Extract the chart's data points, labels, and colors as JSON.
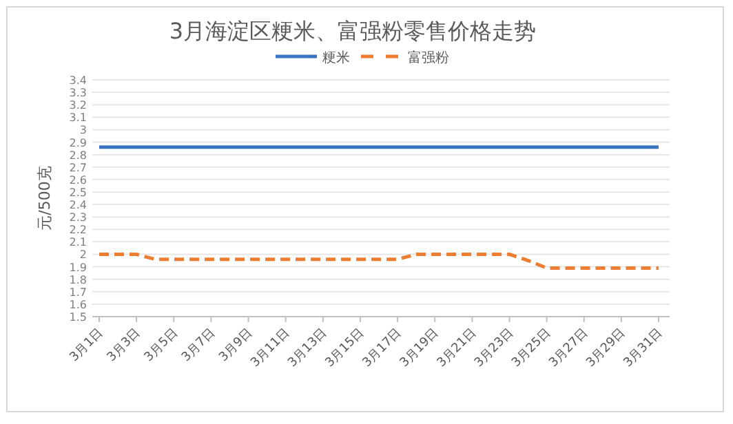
{
  "chart_data": {
    "type": "line",
    "title": "3月海淀区粳米、富强粉零售价格走势",
    "ylabel": "元/500克",
    "categories": [
      "3月1日",
      null,
      "3月3日",
      null,
      "3月5日",
      null,
      "3月7日",
      null,
      "3月9日",
      null,
      "3月11日",
      null,
      "3月13日",
      null,
      "3月15日",
      null,
      "3月17日",
      null,
      "3月19日",
      null,
      "3月21日",
      null,
      "3月23日",
      null,
      "3月25日",
      null,
      "3月27日",
      null,
      "3月29日",
      null,
      "3月31日"
    ],
    "series": [
      {
        "name": "粳米",
        "color": "#3a75c4",
        "line_style": "solid",
        "values": [
          2.86,
          2.86,
          2.86,
          2.86,
          2.86,
          2.86,
          2.86,
          2.86,
          2.86,
          2.86,
          2.86,
          2.86,
          2.86,
          2.86,
          2.86,
          2.86,
          2.86,
          2.86,
          2.86,
          2.86,
          2.86,
          2.86,
          2.86,
          2.86,
          2.86,
          2.86,
          2.86,
          2.86,
          2.86,
          2.86,
          2.86
        ]
      },
      {
        "name": "富强粉",
        "color": "#ed7d31",
        "line_style": "dashed",
        "values": [
          2.0,
          2.0,
          2.0,
          1.96,
          1.96,
          1.96,
          1.96,
          1.96,
          1.96,
          1.96,
          1.96,
          1.96,
          1.96,
          1.96,
          1.96,
          1.96,
          1.96,
          2.0,
          2.0,
          2.0,
          2.0,
          2.0,
          2.0,
          1.95,
          1.89,
          1.89,
          1.89,
          1.89,
          1.89,
          1.89,
          1.89
        ]
      }
    ],
    "ylim": [
      1.5,
      3.4
    ],
    "yticks": [
      1.5,
      1.6,
      1.7,
      1.8,
      1.9,
      2,
      2.1,
      2.2,
      2.3,
      2.4,
      2.5,
      2.6,
      2.7,
      2.8,
      2.9,
      3,
      3.1,
      3.2,
      3.3,
      3.4
    ],
    "grid": "y",
    "legend": "top",
    "marker": "none"
  }
}
